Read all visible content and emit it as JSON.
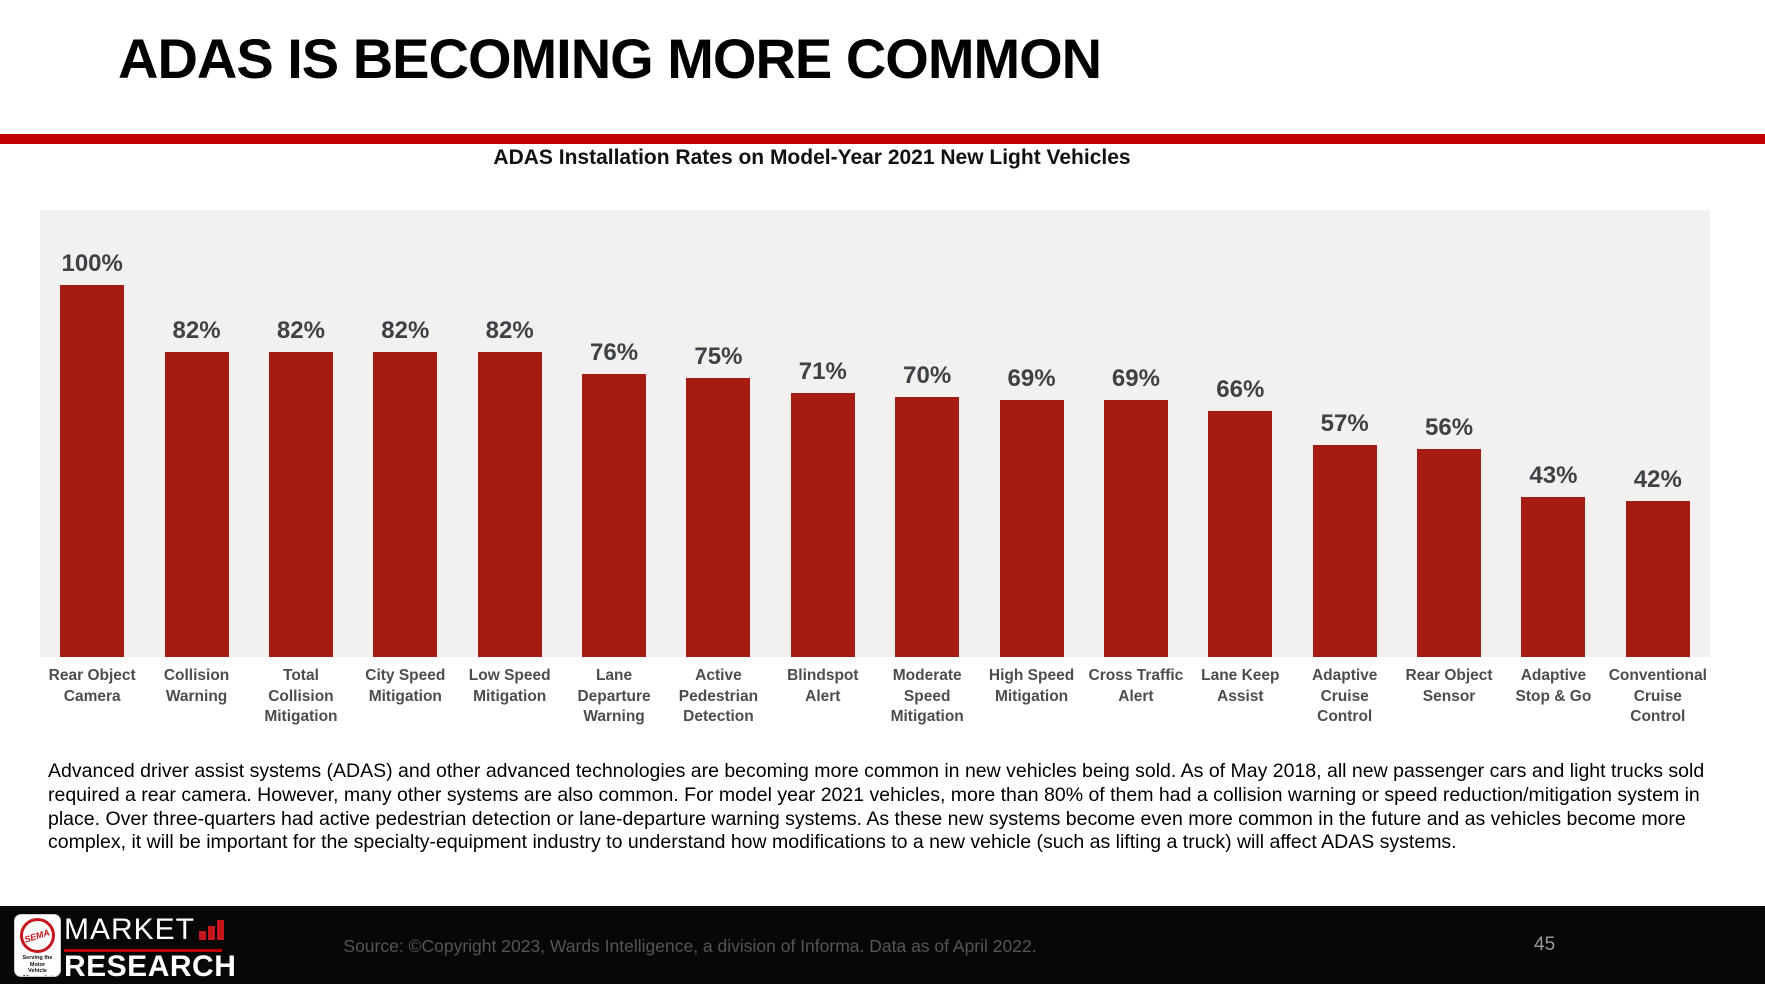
{
  "slide": {
    "title": "ADAS IS BECOMING MORE COMMON",
    "body_text": "Advanced driver assist systems (ADAS) and other advanced technologies are becoming more common in new vehicles being sold. As of May 2018, all new passenger cars and light trucks sold required a rear camera. However, many other systems are also common. For model year 2021 vehicles, more than 80% of them had a collision warning or speed reduction/mitigation system in place. Over three-quarters had active pedestrian detection or lane-departure warning systems. As these new systems become even more common in the future and as vehicles become more complex, it will be important for the specialty-equipment industry to understand how modifications to a new vehicle (such as lifting a truck) will affect ADAS systems.",
    "page_number": "45"
  },
  "footer": {
    "source": "Source: ©Copyright 2023, Wards Intelligence, a division of Informa. Data as of April 2022.",
    "logo": {
      "market": "MARKET",
      "research": "RESEARCH",
      "seal_text": "SEMA",
      "seal_caption_line1": "Serving the Motor",
      "seal_caption_line2": "Vehicle Aftermarket"
    }
  },
  "chart_data": {
    "type": "bar",
    "title": "ADAS Installation Rates on Model-Year 2021 New Light Vehicles",
    "categories": [
      "Rear Object Camera",
      "Collision Warning",
      "Total Collision Mitigation",
      "City Speed Mitigation",
      "Low Speed Mitigation",
      "Lane Departure Warning",
      "Active Pedestrian Detection",
      "Blindspot Alert",
      "Moderate Speed Mitigation",
      "High Speed Mitigation",
      "Cross Traffic Alert",
      "Lane Keep Assist",
      "Adaptive Cruise Control",
      "Rear Object Sensor",
      "Adaptive Stop & Go",
      "Conventional Cruise Control"
    ],
    "values": [
      100,
      82,
      82,
      82,
      82,
      76,
      75,
      71,
      70,
      69,
      69,
      66,
      57,
      56,
      43,
      42
    ],
    "value_labels": [
      "100%",
      "82%",
      "82%",
      "82%",
      "82%",
      "76%",
      "75%",
      "71%",
      "70%",
      "69%",
      "69%",
      "66%",
      "57%",
      "56%",
      "43%",
      "42%"
    ],
    "xlabel": "",
    "ylabel": "",
    "ylim": [
      0,
      120
    ],
    "grid": false,
    "legend": false,
    "data_labels": "above bars, percent",
    "bar_color": "#A51C12",
    "plot_background": "#F2F1EF",
    "value_label_color": "#3E4145",
    "category_label_color": "#4D4D4D"
  },
  "colors": {
    "accent_red": "#C00000",
    "footer_background": "#070707",
    "logo_red": "#C4161C"
  }
}
